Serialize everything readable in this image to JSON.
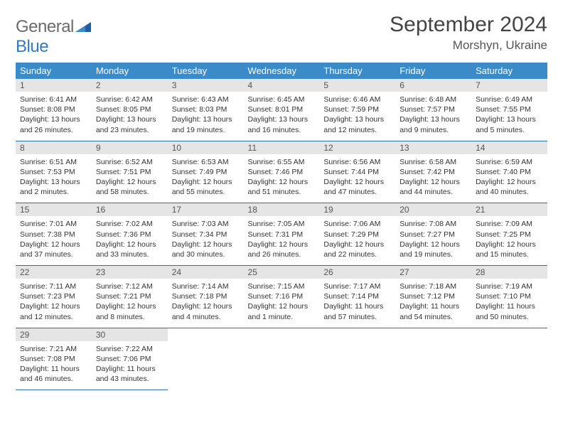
{
  "logo": {
    "word1": "General",
    "word2": "Blue"
  },
  "title": "September 2024",
  "location": "Morshyn, Ukraine",
  "colors": {
    "header_bg": "#3b8bc9",
    "header_text": "#ffffff",
    "daynum_bg": "#e5e5e5",
    "cell_border": "#2f6fa8",
    "logo_grey": "#6b6b6b",
    "logo_blue": "#2f7bbf"
  },
  "weekdays": [
    "Sunday",
    "Monday",
    "Tuesday",
    "Wednesday",
    "Thursday",
    "Friday",
    "Saturday"
  ],
  "weeks": [
    [
      {
        "n": "1",
        "sr": "6:41 AM",
        "ss": "8:08 PM",
        "dl": "13 hours and 26 minutes."
      },
      {
        "n": "2",
        "sr": "6:42 AM",
        "ss": "8:05 PM",
        "dl": "13 hours and 23 minutes."
      },
      {
        "n": "3",
        "sr": "6:43 AM",
        "ss": "8:03 PM",
        "dl": "13 hours and 19 minutes."
      },
      {
        "n": "4",
        "sr": "6:45 AM",
        "ss": "8:01 PM",
        "dl": "13 hours and 16 minutes."
      },
      {
        "n": "5",
        "sr": "6:46 AM",
        "ss": "7:59 PM",
        "dl": "13 hours and 12 minutes."
      },
      {
        "n": "6",
        "sr": "6:48 AM",
        "ss": "7:57 PM",
        "dl": "13 hours and 9 minutes."
      },
      {
        "n": "7",
        "sr": "6:49 AM",
        "ss": "7:55 PM",
        "dl": "13 hours and 5 minutes."
      }
    ],
    [
      {
        "n": "8",
        "sr": "6:51 AM",
        "ss": "7:53 PM",
        "dl": "13 hours and 2 minutes."
      },
      {
        "n": "9",
        "sr": "6:52 AM",
        "ss": "7:51 PM",
        "dl": "12 hours and 58 minutes."
      },
      {
        "n": "10",
        "sr": "6:53 AM",
        "ss": "7:49 PM",
        "dl": "12 hours and 55 minutes."
      },
      {
        "n": "11",
        "sr": "6:55 AM",
        "ss": "7:46 PM",
        "dl": "12 hours and 51 minutes."
      },
      {
        "n": "12",
        "sr": "6:56 AM",
        "ss": "7:44 PM",
        "dl": "12 hours and 47 minutes."
      },
      {
        "n": "13",
        "sr": "6:58 AM",
        "ss": "7:42 PM",
        "dl": "12 hours and 44 minutes."
      },
      {
        "n": "14",
        "sr": "6:59 AM",
        "ss": "7:40 PM",
        "dl": "12 hours and 40 minutes."
      }
    ],
    [
      {
        "n": "15",
        "sr": "7:01 AM",
        "ss": "7:38 PM",
        "dl": "12 hours and 37 minutes."
      },
      {
        "n": "16",
        "sr": "7:02 AM",
        "ss": "7:36 PM",
        "dl": "12 hours and 33 minutes."
      },
      {
        "n": "17",
        "sr": "7:03 AM",
        "ss": "7:34 PM",
        "dl": "12 hours and 30 minutes."
      },
      {
        "n": "18",
        "sr": "7:05 AM",
        "ss": "7:31 PM",
        "dl": "12 hours and 26 minutes."
      },
      {
        "n": "19",
        "sr": "7:06 AM",
        "ss": "7:29 PM",
        "dl": "12 hours and 22 minutes."
      },
      {
        "n": "20",
        "sr": "7:08 AM",
        "ss": "7:27 PM",
        "dl": "12 hours and 19 minutes."
      },
      {
        "n": "21",
        "sr": "7:09 AM",
        "ss": "7:25 PM",
        "dl": "12 hours and 15 minutes."
      }
    ],
    [
      {
        "n": "22",
        "sr": "7:11 AM",
        "ss": "7:23 PM",
        "dl": "12 hours and 12 minutes."
      },
      {
        "n": "23",
        "sr": "7:12 AM",
        "ss": "7:21 PM",
        "dl": "12 hours and 8 minutes."
      },
      {
        "n": "24",
        "sr": "7:14 AM",
        "ss": "7:18 PM",
        "dl": "12 hours and 4 minutes."
      },
      {
        "n": "25",
        "sr": "7:15 AM",
        "ss": "7:16 PM",
        "dl": "12 hours and 1 minute."
      },
      {
        "n": "26",
        "sr": "7:17 AM",
        "ss": "7:14 PM",
        "dl": "11 hours and 57 minutes."
      },
      {
        "n": "27",
        "sr": "7:18 AM",
        "ss": "7:12 PM",
        "dl": "11 hours and 54 minutes."
      },
      {
        "n": "28",
        "sr": "7:19 AM",
        "ss": "7:10 PM",
        "dl": "11 hours and 50 minutes."
      }
    ],
    [
      {
        "n": "29",
        "sr": "7:21 AM",
        "ss": "7:08 PM",
        "dl": "11 hours and 46 minutes."
      },
      {
        "n": "30",
        "sr": "7:22 AM",
        "ss": "7:06 PM",
        "dl": "11 hours and 43 minutes."
      },
      null,
      null,
      null,
      null,
      null
    ]
  ],
  "labels": {
    "sunrise": "Sunrise:",
    "sunset": "Sunset:",
    "daylight": "Daylight:"
  }
}
